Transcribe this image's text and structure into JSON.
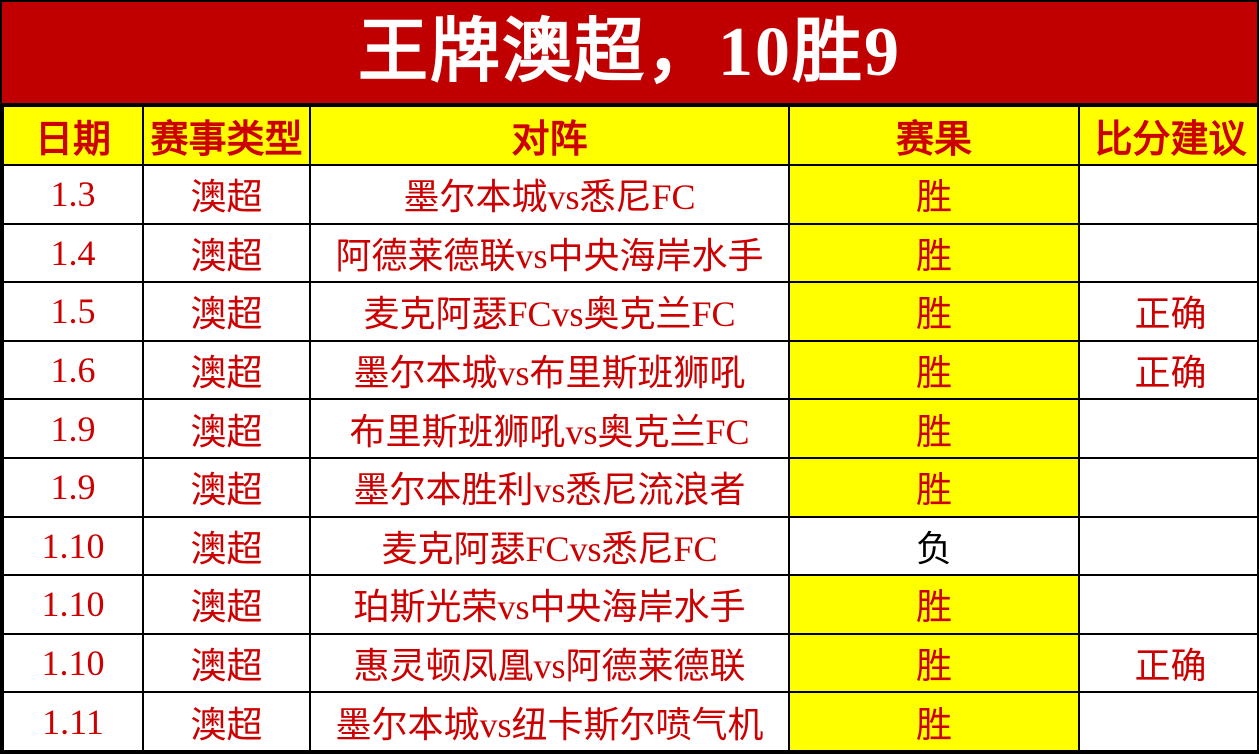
{
  "banner": {
    "title": "王牌澳超，10胜9"
  },
  "colors": {
    "banner_bg": "#c00000",
    "header_bg": "#ffff00",
    "text_red": "#cc0000",
    "win_bg": "#ffff00",
    "loss_text": "#000000"
  },
  "table": {
    "headers": {
      "date": "日期",
      "league": "赛事类型",
      "match": "对阵",
      "result": "赛果",
      "suggestion": "比分建议"
    },
    "rows": [
      {
        "date": "1.3",
        "league": "澳超",
        "match": "墨尔本城vs悉尼FC",
        "result": "胜",
        "result_win": true,
        "suggestion": ""
      },
      {
        "date": "1.4",
        "league": "澳超",
        "match": "阿德莱德联vs中央海岸水手",
        "result": "胜",
        "result_win": true,
        "suggestion": ""
      },
      {
        "date": "1.5",
        "league": "澳超",
        "match": "麦克阿瑟FCvs奥克兰FC",
        "result": "胜",
        "result_win": true,
        "suggestion": "正确"
      },
      {
        "date": "1.6",
        "league": "澳超",
        "match": "墨尔本城vs布里斯班狮吼",
        "result": "胜",
        "result_win": true,
        "suggestion": "正确"
      },
      {
        "date": "1.9",
        "league": "澳超",
        "match": "布里斯班狮吼vs奥克兰FC",
        "result": "胜",
        "result_win": true,
        "suggestion": ""
      },
      {
        "date": "1.9",
        "league": "澳超",
        "match": "墨尔本胜利vs悉尼流浪者",
        "result": "胜",
        "result_win": true,
        "suggestion": ""
      },
      {
        "date": "1.10",
        "league": "澳超",
        "match": "麦克阿瑟FCvs悉尼FC",
        "result": "负",
        "result_win": false,
        "suggestion": ""
      },
      {
        "date": "1.10",
        "league": "澳超",
        "match": "珀斯光荣vs中央海岸水手",
        "result": "胜",
        "result_win": true,
        "suggestion": ""
      },
      {
        "date": "1.10",
        "league": "澳超",
        "match": "惠灵顿凤凰vs阿德莱德联",
        "result": "胜",
        "result_win": true,
        "suggestion": "正确"
      },
      {
        "date": "1.11",
        "league": "澳超",
        "match": "墨尔本城vs纽卡斯尔喷气机",
        "result": "胜",
        "result_win": true,
        "suggestion": ""
      }
    ]
  }
}
